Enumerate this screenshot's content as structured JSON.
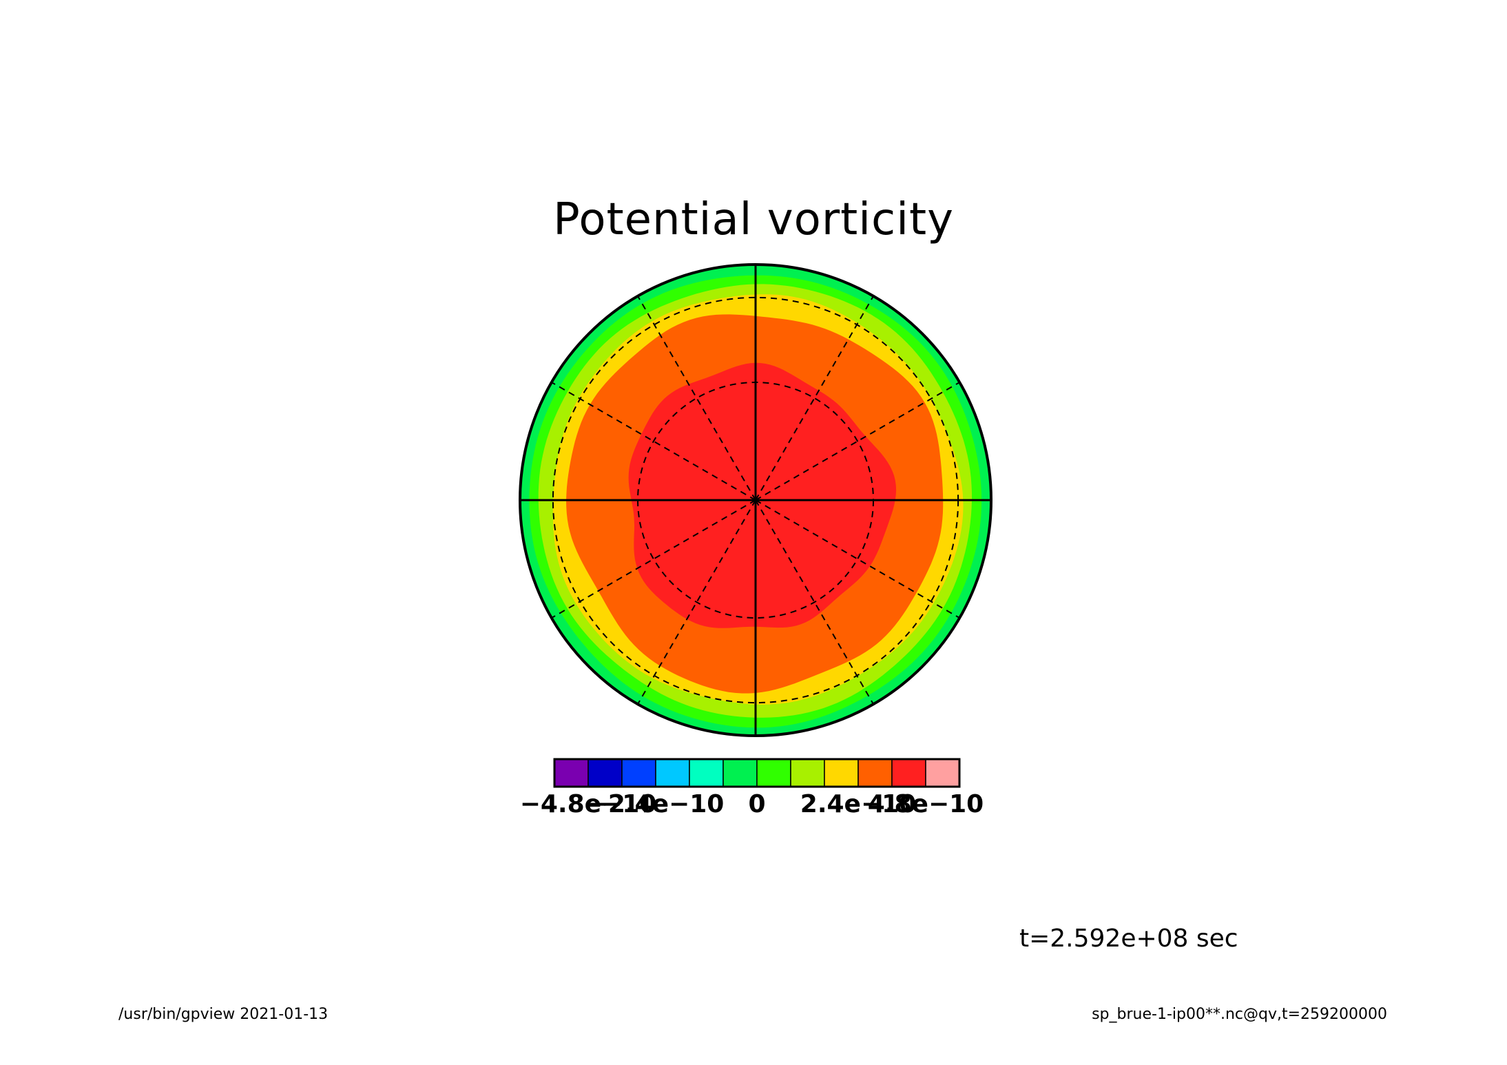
{
  "chart_data": {
    "type": "heatmap",
    "projection": "polar-stereographic",
    "title": "Potential vorticity",
    "variable": "qv",
    "time_label": "t=2.592e+08 sec",
    "description_levels": "concentric contour bands from pole (center) to edge",
    "bands_center_to_edge": [
      {
        "color_index": 10,
        "range": [
          4e-10,
          4.8e-10
        ]
      },
      {
        "color_index": 9,
        "range": [
          3.2e-10,
          4e-10
        ]
      },
      {
        "color_index": 8,
        "range": [
          2.4e-10,
          3.2e-10
        ]
      },
      {
        "color_index": 7,
        "range": [
          1.6e-10,
          2.4e-10
        ]
      },
      {
        "color_index": 6,
        "range": [
          8e-11,
          1.6e-10
        ]
      },
      {
        "color_index": 5,
        "range": [
          0,
          8e-11
        ]
      }
    ],
    "colorbar": {
      "colors": [
        "#7a00b0",
        "#0000c8",
        "#0040ff",
        "#00c8ff",
        "#00ffc0",
        "#00f050",
        "#30ff00",
        "#a8f000",
        "#ffd800",
        "#ff6000",
        "#ff2020",
        "#ffa0a0"
      ],
      "tick_labels": [
        "-4.8e-10",
        "-2.4e-10",
        "0",
        "2.4e-10",
        "4.8e-10"
      ],
      "tick_positions_index": [
        1,
        3,
        6,
        9,
        11
      ]
    },
    "grid": true
  },
  "text": {
    "title": "Potential vorticity",
    "time": "t=2.592e+08 sec",
    "footer_left": "/usr/bin/gpview   2021-01-13",
    "footer_right": "sp_brue-1-ip00**.nc@qv,t=259200000"
  }
}
